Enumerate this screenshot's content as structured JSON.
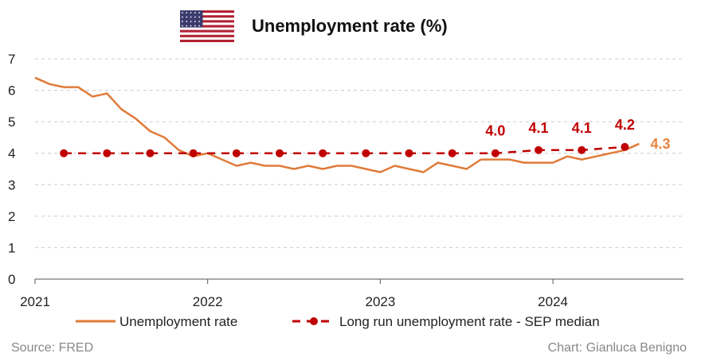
{
  "title": "Unemployment rate (%)",
  "flag": {
    "icon": "us-flag-icon",
    "stripe_red": "#b22234",
    "canton_blue": "#3c3b6e"
  },
  "colors": {
    "unemployment": "#e07b39",
    "sep": "#c00000",
    "label_unemp": "#e8843f",
    "grid": "#cccccc"
  },
  "source": "Source: FRED",
  "credit": "Chart: Gianluca Benigno",
  "legend": {
    "unemployment": "Unemployment rate",
    "sep": "Long run unemployment rate - SEP median"
  },
  "chart_data": {
    "type": "line",
    "title": "Unemployment rate (%)",
    "xlabel": "",
    "ylabel": "",
    "ylim": [
      0,
      7
    ],
    "yticks": [
      "0",
      "1",
      "2",
      "3",
      "4",
      "5",
      "6",
      "7"
    ],
    "xticks": [
      "2021",
      "2022",
      "2023",
      "2024"
    ],
    "grid": "horizontal dashed",
    "legend_position": "bottom",
    "series": [
      {
        "name": "Unemployment rate",
        "style": "solid",
        "x": [
          "2021-01",
          "2021-02",
          "2021-03",
          "2021-04",
          "2021-05",
          "2021-06",
          "2021-07",
          "2021-08",
          "2021-09",
          "2021-10",
          "2021-11",
          "2021-12",
          "2022-01",
          "2022-02",
          "2022-03",
          "2022-04",
          "2022-05",
          "2022-06",
          "2022-07",
          "2022-08",
          "2022-09",
          "2022-10",
          "2022-11",
          "2022-12",
          "2023-01",
          "2023-02",
          "2023-03",
          "2023-04",
          "2023-05",
          "2023-06",
          "2023-07",
          "2023-08",
          "2023-09",
          "2023-10",
          "2023-11",
          "2023-12",
          "2024-01",
          "2024-02",
          "2024-03",
          "2024-04",
          "2024-05",
          "2024-06",
          "2024-07"
        ],
        "values": [
          6.4,
          6.2,
          6.1,
          6.1,
          5.8,
          5.9,
          5.4,
          5.1,
          4.7,
          4.5,
          4.1,
          3.9,
          4.0,
          3.8,
          3.6,
          3.7,
          3.6,
          3.6,
          3.5,
          3.6,
          3.5,
          3.6,
          3.6,
          3.5,
          3.4,
          3.6,
          3.5,
          3.4,
          3.7,
          3.6,
          3.5,
          3.8,
          3.8,
          3.8,
          3.7,
          3.7,
          3.7,
          3.9,
          3.8,
          3.9,
          4.0,
          4.1,
          4.3
        ],
        "end_label": "4.3"
      },
      {
        "name": "Long run unemployment rate - SEP median",
        "style": "dashed with markers",
        "x": [
          "2021-03",
          "2021-06",
          "2021-09",
          "2021-12",
          "2022-03",
          "2022-06",
          "2022-09",
          "2022-12",
          "2023-03",
          "2023-06",
          "2023-09",
          "2023-12",
          "2024-03",
          "2024-06"
        ],
        "values": [
          4.0,
          4.0,
          4.0,
          4.0,
          4.0,
          4.0,
          4.0,
          4.0,
          4.0,
          4.0,
          4.0,
          4.1,
          4.1,
          4.2
        ],
        "point_labels": [
          {
            "x": "2023-09",
            "text": "4.0"
          },
          {
            "x": "2023-12",
            "text": "4.1"
          },
          {
            "x": "2024-03",
            "text": "4.1"
          },
          {
            "x": "2024-06",
            "text": "4.2"
          }
        ]
      }
    ]
  }
}
